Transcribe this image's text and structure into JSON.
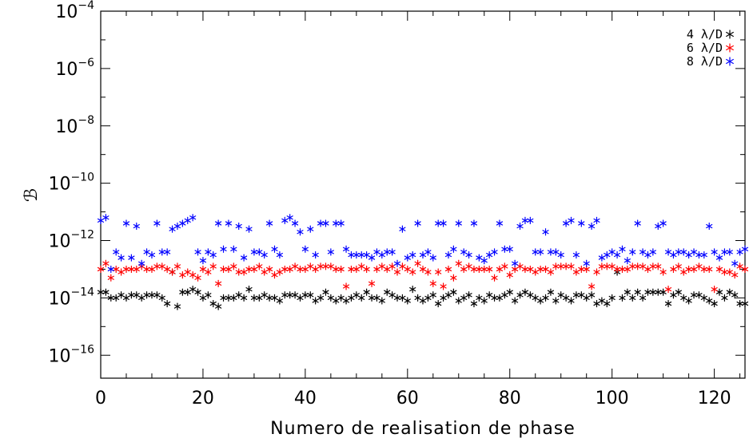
{
  "chart_data": {
    "type": "scatter",
    "xlabel": "Numero de realisation de phase",
    "ylabel": "ℬ",
    "xlim": [
      0,
      126
    ],
    "ylim_exponents": [
      -16.8,
      -4
    ],
    "y_scale": "log",
    "x_ticks": [
      0,
      20,
      40,
      60,
      80,
      100,
      120
    ],
    "y_ticks": [
      {
        "base": "10",
        "exp": "−4"
      },
      {
        "base": "10",
        "exp": "−6"
      },
      {
        "base": "10",
        "exp": "−8"
      },
      {
        "base": "10",
        "exp": "−10"
      },
      {
        "base": "10",
        "exp": "−12"
      },
      {
        "base": "10",
        "exp": "−14"
      },
      {
        "base": "10",
        "exp": "−16"
      }
    ],
    "y_tick_exponents": [
      -4,
      -6,
      -8,
      -10,
      -12,
      -14,
      -16
    ],
    "grid": false,
    "legend_position": "top-right",
    "marker": "asterisk",
    "series": [
      {
        "name": "4 λ/D",
        "color": "#000000",
        "log10_values": [
          -13.8,
          -13.8,
          -14.0,
          -14.0,
          -13.9,
          -14.0,
          -13.9,
          -13.9,
          -14.0,
          -13.9,
          -13.9,
          -13.9,
          -14.0,
          -14.2,
          -13.1,
          -14.3,
          -13.8,
          -13.8,
          -13.7,
          -13.8,
          -14.0,
          -13.9,
          -14.2,
          -14.3,
          -14.0,
          -14.0,
          -14.0,
          -13.9,
          -14.0,
          -13.7,
          -14.0,
          -14.0,
          -13.9,
          -14.0,
          -14.0,
          -14.1,
          -13.9,
          -13.9,
          -13.9,
          -14.0,
          -13.9,
          -13.9,
          -14.1,
          -14.0,
          -13.8,
          -14.0,
          -14.1,
          -14.0,
          -14.1,
          -14.0,
          -13.9,
          -14.0,
          -13.8,
          -14.0,
          -14.0,
          -14.1,
          -13.8,
          -13.9,
          -14.0,
          -14.0,
          -14.1,
          -13.7,
          -14.0,
          -14.1,
          -14.0,
          -13.9,
          -14.2,
          -14.0,
          -13.9,
          -13.8,
          -14.1,
          -14.0,
          -13.9,
          -14.2,
          -14.0,
          -14.1,
          -13.9,
          -14.0,
          -14.0,
          -13.9,
          -13.8,
          -14.1,
          -13.9,
          -13.8,
          -13.9,
          -14.0,
          -14.1,
          -14.0,
          -13.8,
          -14.1,
          -13.9,
          -14.0,
          -14.1,
          -13.9,
          -13.9,
          -14.0,
          -13.9,
          -14.2,
          -14.1,
          -14.2,
          -14.0,
          -13.1,
          -14.0,
          -13.8,
          -14.0,
          -13.8,
          -14.0,
          -13.8,
          -13.8,
          -13.8,
          -13.8,
          -14.2,
          -13.9,
          -13.8,
          -14.0,
          -14.1,
          -13.9,
          -13.9,
          -14.0,
          -14.1,
          -14.2,
          -13.8,
          -14.0,
          -13.8,
          -13.9,
          -14.2,
          -14.2
        ]
      },
      {
        "name": "6 λ/D",
        "color": "#ff0000",
        "log10_values": [
          -13.0,
          -12.8,
          -13.3,
          -13.0,
          -13.1,
          -13.0,
          -13.0,
          -13.0,
          -12.9,
          -13.0,
          -13.0,
          -12.9,
          -12.9,
          -13.0,
          -13.1,
          -12.9,
          -13.2,
          -13.1,
          -13.2,
          -13.3,
          -13.0,
          -13.1,
          -12.9,
          -13.5,
          -13.0,
          -13.0,
          -12.9,
          -13.1,
          -13.1,
          -13.0,
          -13.0,
          -12.9,
          -13.1,
          -13.0,
          -13.2,
          -13.1,
          -13.0,
          -13.0,
          -12.9,
          -13.0,
          -13.0,
          -12.9,
          -13.0,
          -12.9,
          -12.9,
          -12.9,
          -13.0,
          -13.0,
          -13.6,
          -13.0,
          -13.0,
          -12.9,
          -13.0,
          -13.5,
          -13.0,
          -12.9,
          -13.0,
          -12.9,
          -13.1,
          -12.9,
          -13.0,
          -13.1,
          -12.8,
          -13.0,
          -13.1,
          -13.5,
          -13.1,
          -13.6,
          -13.0,
          -13.3,
          -12.8,
          -13.0,
          -12.9,
          -13.0,
          -13.0,
          -13.0,
          -13.0,
          -13.3,
          -13.0,
          -12.9,
          -13.2,
          -13.0,
          -12.9,
          -13.0,
          -13.0,
          -13.1,
          -13.0,
          -13.0,
          -13.1,
          -12.9,
          -12.9,
          -12.9,
          -12.9,
          -13.1,
          -13.0,
          -13.0,
          -13.6,
          -13.1,
          -12.9,
          -12.9,
          -12.9,
          -13.0,
          -13.0,
          -13.0,
          -12.9,
          -12.9,
          -12.9,
          -13.0,
          -12.9,
          -12.9,
          -13.1,
          -13.7,
          -13.0,
          -12.9,
          -13.1,
          -13.0,
          -13.0,
          -12.9,
          -13.0,
          -13.0,
          -13.7,
          -13.0,
          -13.1,
          -13.1,
          -13.2,
          -12.9,
          -13.0
        ]
      },
      {
        "name": "8 λ/D",
        "color": "#0000ff",
        "log10_values": [
          -11.3,
          -11.2,
          -13.0,
          -12.4,
          -12.6,
          -11.4,
          -12.6,
          -11.5,
          -12.8,
          -12.4,
          -12.5,
          -11.4,
          -12.4,
          -12.4,
          -11.6,
          -11.5,
          -11.4,
          -11.3,
          -11.2,
          -12.4,
          -12.7,
          -12.4,
          -12.5,
          -11.4,
          -12.3,
          -11.4,
          -12.3,
          -11.5,
          -12.6,
          -11.6,
          -12.4,
          -12.4,
          -12.5,
          -11.4,
          -12.3,
          -12.5,
          -11.3,
          -11.2,
          -11.4,
          -11.7,
          -12.3,
          -11.6,
          -12.5,
          -11.4,
          -11.4,
          -12.4,
          -11.4,
          -11.4,
          -12.3,
          -12.5,
          -12.5,
          -12.5,
          -12.5,
          -12.6,
          -12.4,
          -12.5,
          -12.4,
          -12.4,
          -12.8,
          -11.6,
          -12.6,
          -12.5,
          -11.4,
          -12.5,
          -12.4,
          -12.6,
          -11.4,
          -11.4,
          -12.5,
          -12.3,
          -11.4,
          -12.4,
          -12.5,
          -11.4,
          -12.6,
          -12.7,
          -12.5,
          -12.4,
          -11.4,
          -12.3,
          -12.3,
          -12.8,
          -11.5,
          -11.3,
          -11.3,
          -12.4,
          -12.4,
          -11.7,
          -12.4,
          -12.4,
          -12.5,
          -11.4,
          -11.3,
          -12.5,
          -11.4,
          -12.8,
          -11.5,
          -11.3,
          -12.6,
          -12.5,
          -12.4,
          -12.5,
          -12.3,
          -12.7,
          -12.4,
          -11.4,
          -12.4,
          -12.5,
          -12.4,
          -11.5,
          -11.4,
          -12.4,
          -12.5,
          -12.4,
          -12.4,
          -12.5,
          -12.4,
          -12.5,
          -12.5,
          -11.5,
          -12.4,
          -12.6,
          -12.4,
          -12.4,
          -12.8,
          -12.4,
          -12.3
        ]
      }
    ]
  }
}
